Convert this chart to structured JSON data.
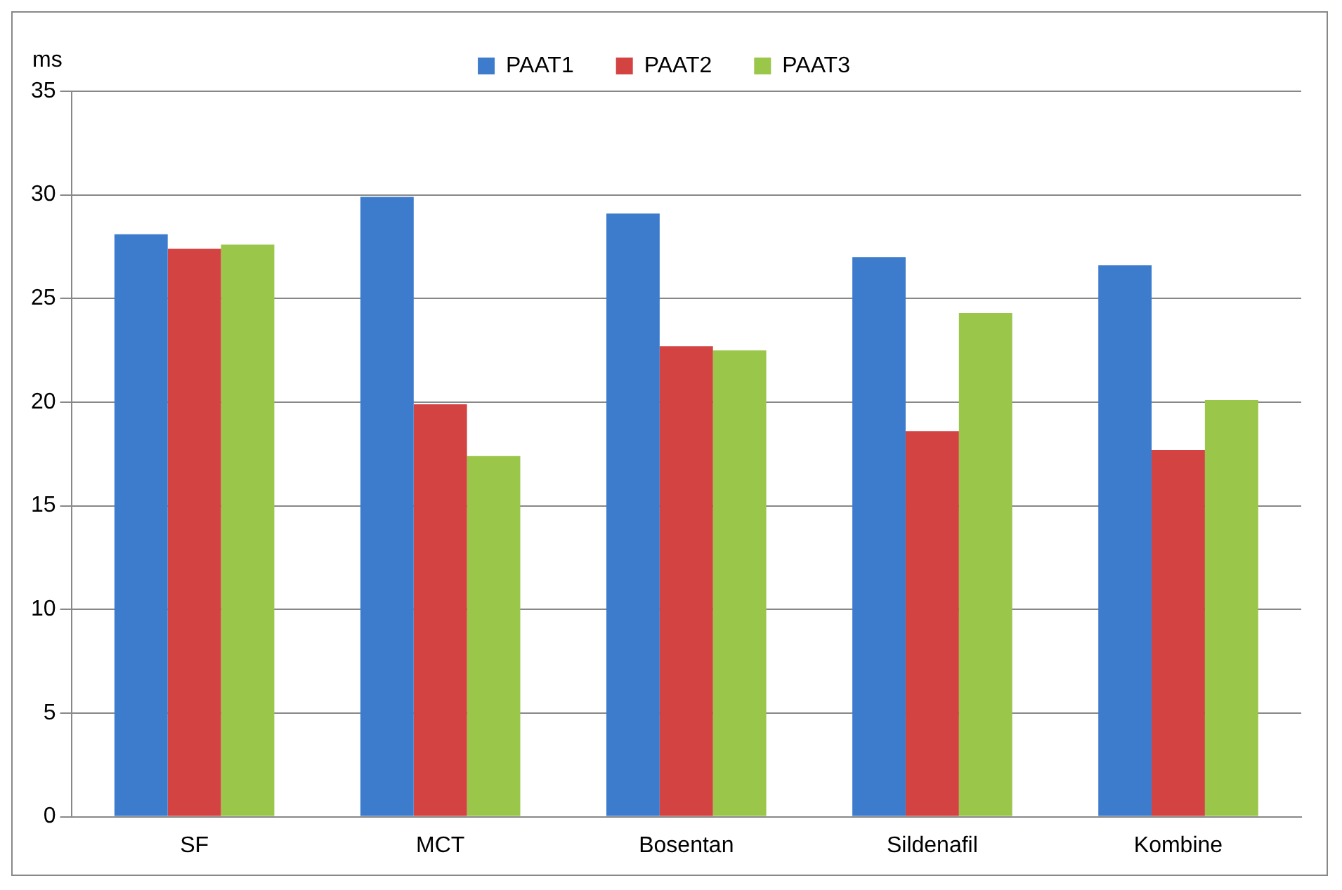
{
  "chart_data": {
    "type": "bar",
    "ylabel": "ms",
    "categories": [
      "SF",
      "MCT",
      "Bosentan",
      "Sildenafil",
      "Kombine"
    ],
    "series": [
      {
        "name": "PAAT1",
        "color": "#3d7ccc",
        "values": [
          28.1,
          29.9,
          29.1,
          27.0,
          26.6
        ]
      },
      {
        "name": "PAAT2",
        "color": "#d24342",
        "values": [
          27.4,
          19.9,
          22.7,
          18.6,
          17.7
        ]
      },
      {
        "name": "PAAT3",
        "color": "#9ac64a",
        "values": [
          27.6,
          17.4,
          22.5,
          24.3,
          20.1
        ]
      }
    ],
    "ylim": [
      0,
      35
    ],
    "yticks": [
      0,
      5,
      10,
      15,
      20,
      25,
      30,
      35
    ],
    "grid": "y",
    "legend": "top"
  }
}
